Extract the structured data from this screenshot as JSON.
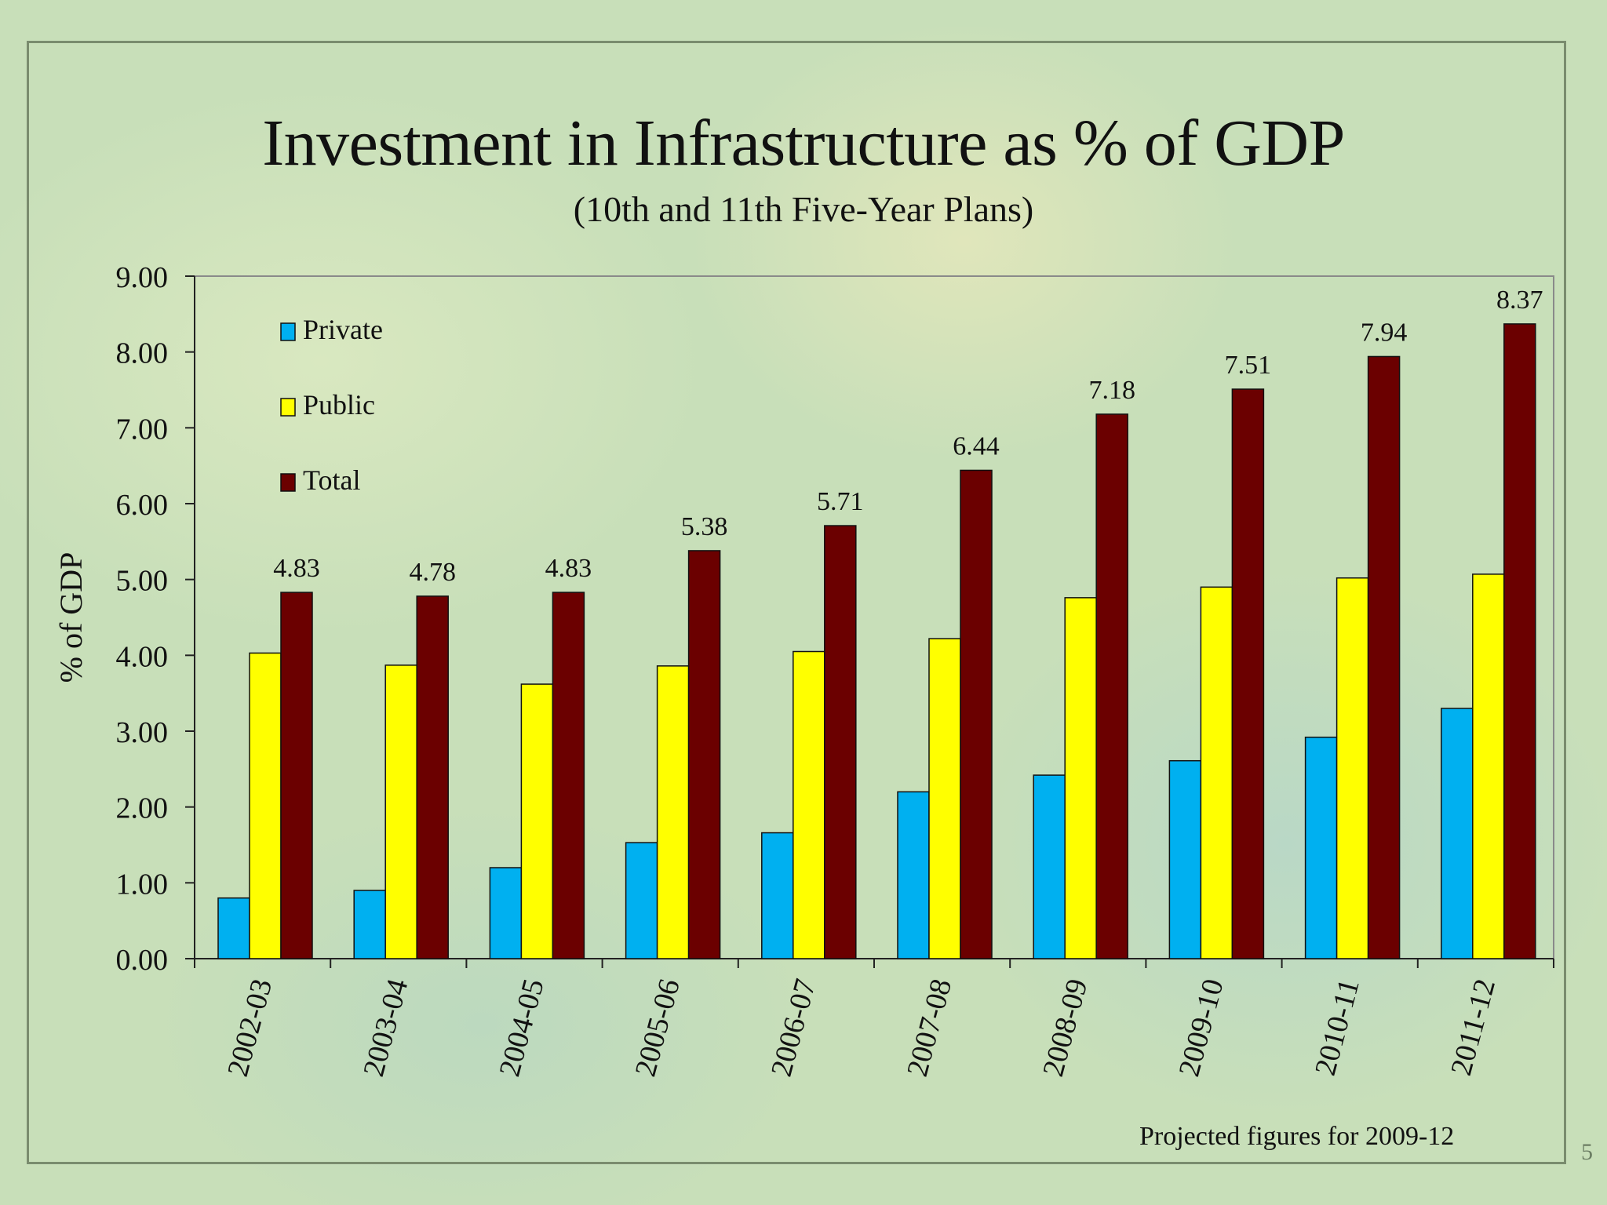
{
  "slide": {
    "title": "Investment in Infrastructure as % of GDP",
    "subtitle": "(10th and 11th Five-Year Plans)",
    "note": "Projected figures for 2009-12",
    "page_number": "5"
  },
  "colors": {
    "private": "#00b0f0",
    "public": "#ffff00",
    "total": "#6b0000"
  },
  "chart_data": {
    "type": "bar",
    "title": "Investment in Infrastructure as % of GDP",
    "subtitle": "(10th and 11th Five-Year Plans)",
    "ylabel": "% of GDP",
    "xlabel": "",
    "ylim": [
      0,
      9
    ],
    "yticks": [
      "0.00",
      "1.00",
      "2.00",
      "3.00",
      "4.00",
      "5.00",
      "6.00",
      "7.00",
      "8.00",
      "9.00"
    ],
    "categories": [
      "2002-03",
      "2003-04",
      "2004-05",
      "2005-06",
      "2006-07",
      "2007-08",
      "2008-09",
      "2009-10",
      "2010-11",
      "2011-12"
    ],
    "legend_position": "top-left",
    "series": [
      {
        "name": "Private",
        "values": [
          0.8,
          0.9,
          1.2,
          1.53,
          1.66,
          2.2,
          2.42,
          2.61,
          2.92,
          3.3
        ]
      },
      {
        "name": "Public",
        "values": [
          4.03,
          3.87,
          3.62,
          3.86,
          4.05,
          4.22,
          4.76,
          4.9,
          5.02,
          5.07
        ]
      },
      {
        "name": "Total",
        "values": [
          4.83,
          4.78,
          4.83,
          5.38,
          5.71,
          6.44,
          7.18,
          7.51,
          7.94,
          8.37
        ]
      }
    ],
    "data_labels": [
      "4.83",
      "4.78",
      "4.83",
      "5.38",
      "5.71",
      "6.44",
      "7.18",
      "7.51",
      "7.94",
      "8.37"
    ]
  }
}
